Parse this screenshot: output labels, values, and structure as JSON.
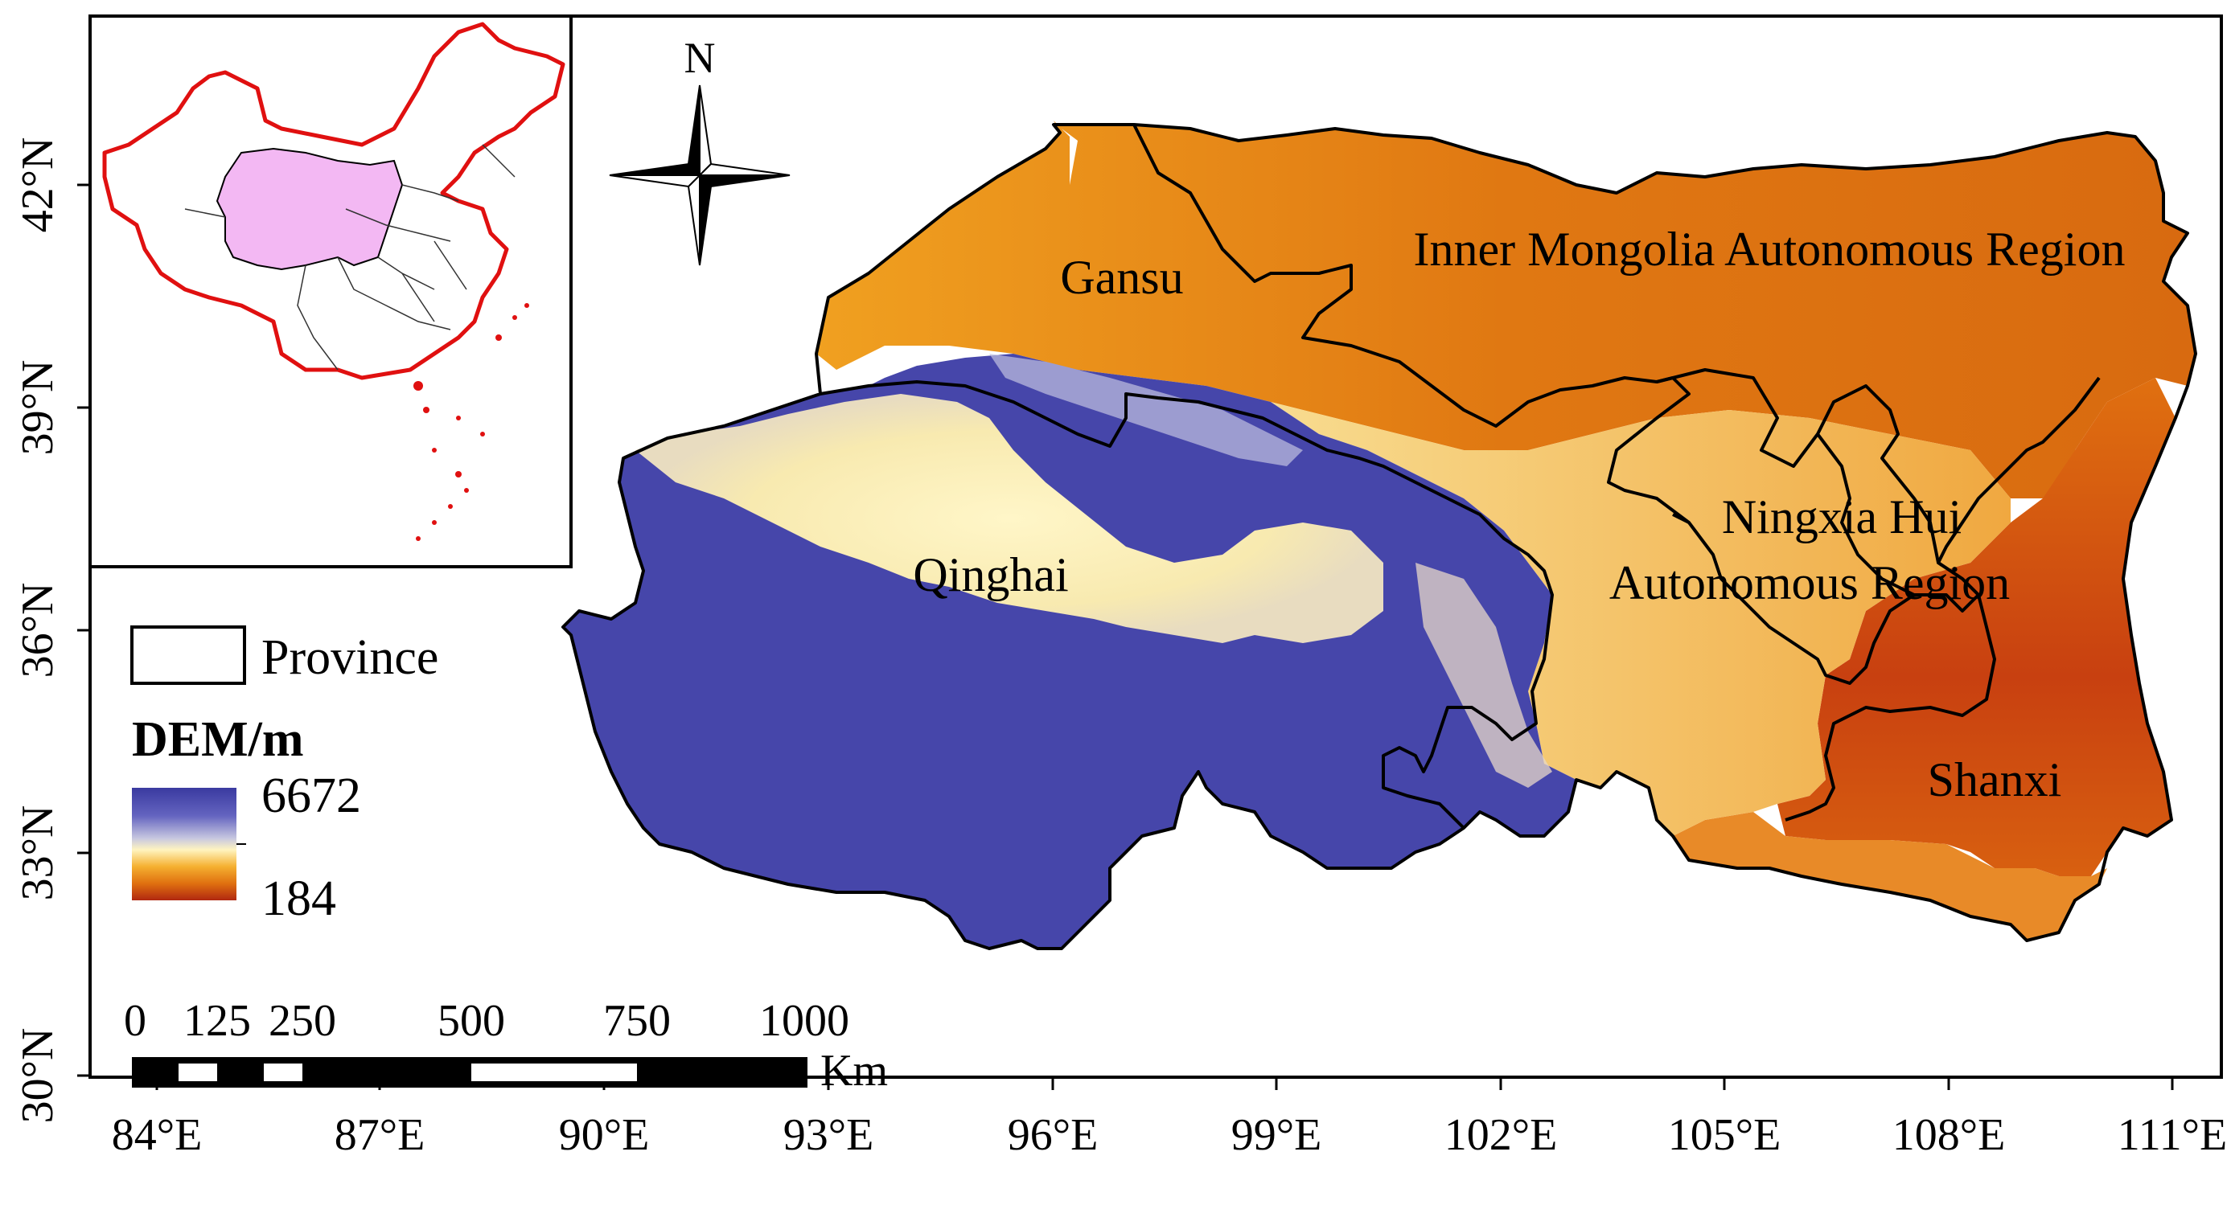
{
  "map": {
    "longitude_ticks": [
      "84°E",
      "87°E",
      "90°E",
      "93°E",
      "96°E",
      "99°E",
      "102°E",
      "105°E",
      "108°E",
      "111°E"
    ],
    "latitude_ticks": [
      "30°N",
      "33°N",
      "36°N",
      "39°N",
      "42°N"
    ],
    "provinces": [
      {
        "key": "gansu",
        "name": "Gansu"
      },
      {
        "key": "inner_mongolia",
        "name": "Inner Mongolia Autonomous Region"
      },
      {
        "key": "qinghai",
        "name": "Qinghai"
      },
      {
        "key": "ningxia_line1",
        "name": "Ningxia Hui"
      },
      {
        "key": "ningxia_line2",
        "name": "Autonomous Region"
      },
      {
        "key": "shanxi",
        "name": "Shanxi"
      }
    ],
    "north_arrow_label": "N",
    "legend": {
      "province_label": "Province",
      "dem_title": "DEM/m",
      "dem_max": "6672",
      "dem_min": "184",
      "colors": [
        "#3a3aa0",
        "#6464c0",
        "#c8c8e0",
        "#fff4c0",
        "#f5b030",
        "#e07010",
        "#b02810"
      ]
    },
    "scale_bar": {
      "ticks": [
        "0",
        "125",
        "250",
        "500",
        "750",
        "1000"
      ],
      "unit": "Km"
    },
    "inset": {
      "highlight_color": "#f3b8f3",
      "border_color": "#e01010"
    }
  }
}
